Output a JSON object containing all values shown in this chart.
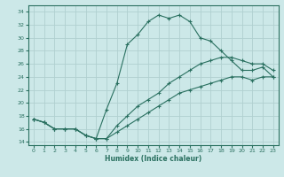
{
  "xlabel": "Humidex (Indice chaleur)",
  "bg_color": "#cce8e8",
  "grid_color": "#b0d0d0",
  "line_color": "#2a7060",
  "xlim": [
    -0.5,
    23.5
  ],
  "ylim": [
    13.5,
    35.0
  ],
  "xticks": [
    0,
    1,
    2,
    3,
    4,
    5,
    6,
    7,
    8,
    9,
    10,
    11,
    12,
    13,
    14,
    15,
    16,
    17,
    18,
    19,
    20,
    21,
    22,
    23
  ],
  "yticks": [
    14,
    16,
    18,
    20,
    22,
    24,
    26,
    28,
    30,
    32,
    34
  ],
  "line1_x": [
    0,
    1,
    2,
    3,
    4,
    5,
    6,
    7,
    8,
    9,
    10,
    11,
    12,
    13,
    14,
    15,
    16,
    17,
    18,
    19,
    20,
    21,
    22,
    23
  ],
  "line1_y": [
    17.5,
    17.0,
    16.0,
    16.0,
    16.0,
    15.0,
    14.5,
    19.0,
    23.0,
    29.0,
    30.5,
    32.5,
    33.5,
    33.0,
    33.5,
    32.5,
    30.0,
    29.5,
    28.0,
    26.5,
    25.0,
    25.0,
    25.5,
    24.0
  ],
  "line2_x": [
    0,
    1,
    2,
    3,
    4,
    5,
    6,
    7,
    8,
    9,
    10,
    11,
    12,
    13,
    14,
    15,
    16,
    17,
    18,
    19,
    20,
    21,
    22,
    23
  ],
  "line2_y": [
    17.5,
    17.0,
    16.0,
    16.0,
    16.0,
    15.0,
    14.5,
    14.5,
    16.5,
    18.0,
    19.5,
    20.5,
    21.5,
    23.0,
    24.0,
    25.0,
    26.0,
    26.5,
    27.0,
    27.0,
    26.5,
    26.0,
    26.0,
    25.0
  ],
  "line3_x": [
    0,
    1,
    2,
    3,
    4,
    5,
    6,
    7,
    8,
    9,
    10,
    11,
    12,
    13,
    14,
    15,
    16,
    17,
    18,
    19,
    20,
    21,
    22,
    23
  ],
  "line3_y": [
    17.5,
    17.0,
    16.0,
    16.0,
    16.0,
    15.0,
    14.5,
    14.5,
    15.5,
    16.5,
    17.5,
    18.5,
    19.5,
    20.5,
    21.5,
    22.0,
    22.5,
    23.0,
    23.5,
    24.0,
    24.0,
    23.5,
    24.0,
    24.0
  ]
}
